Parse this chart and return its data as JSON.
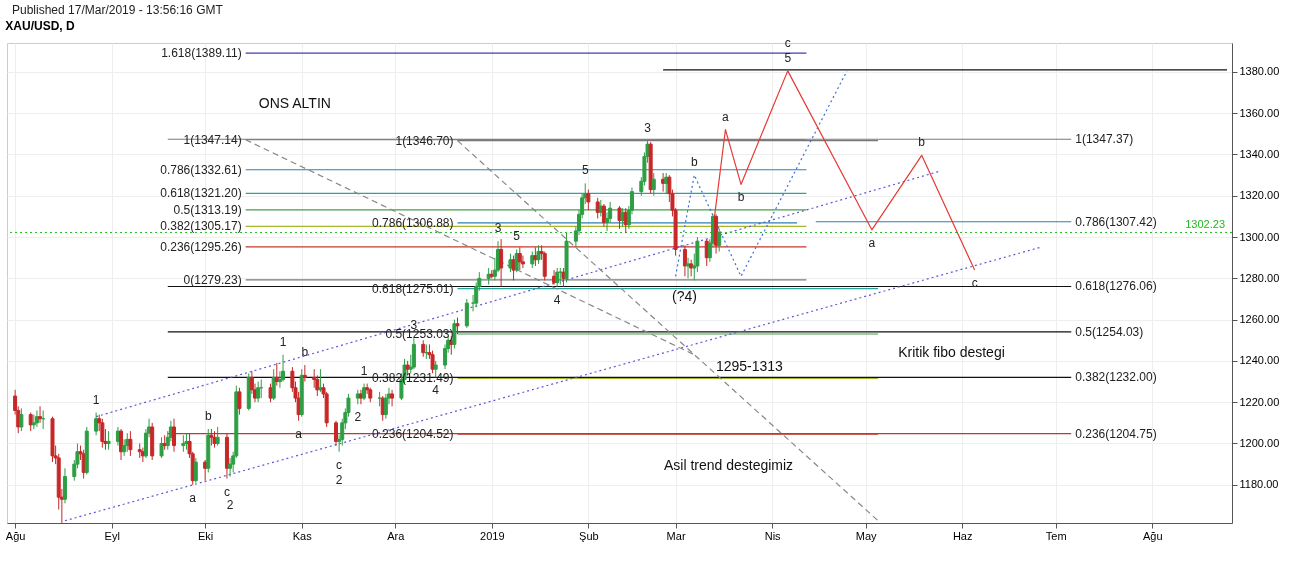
{
  "chart_data": {
    "type": "candlestick",
    "title": "XAU/USD, D",
    "x": [
      "2018-08-01",
      "2018-08-02",
      "2018-08-03",
      "2018-08-06",
      "2018-08-07",
      "2018-08-08",
      "2018-08-09",
      "2018-08-10",
      "2018-08-13",
      "2018-08-14",
      "2018-08-15",
      "2018-08-16",
      "2018-08-17",
      "2018-08-20",
      "2018-08-21",
      "2018-08-22",
      "2018-08-23",
      "2018-08-24",
      "2018-08-27",
      "2018-08-28",
      "2018-08-29",
      "2018-08-30",
      "2018-08-31",
      "2018-09-03",
      "2018-09-04",
      "2018-09-05",
      "2018-09-06",
      "2018-09-07",
      "2018-09-10",
      "2018-09-11",
      "2018-09-12",
      "2018-09-13",
      "2018-09-14",
      "2018-09-17",
      "2018-09-18",
      "2018-09-19",
      "2018-09-20",
      "2018-09-21",
      "2018-09-24",
      "2018-09-25",
      "2018-09-26",
      "2018-09-27",
      "2018-09-28",
      "2018-10-01",
      "2018-10-02",
      "2018-10-03",
      "2018-10-04",
      "2018-10-05",
      "2018-10-08",
      "2018-10-09",
      "2018-10-10",
      "2018-10-11",
      "2018-10-12",
      "2018-10-15",
      "2018-10-16",
      "2018-10-17",
      "2018-10-18",
      "2018-10-19",
      "2018-10-22",
      "2018-10-23",
      "2018-10-24",
      "2018-10-25",
      "2018-10-26",
      "2018-10-29",
      "2018-10-30",
      "2018-10-31",
      "2018-11-01",
      "2018-11-02",
      "2018-11-05",
      "2018-11-06",
      "2018-11-07",
      "2018-11-08",
      "2018-11-09",
      "2018-11-12",
      "2018-11-13",
      "2018-11-14",
      "2018-11-15",
      "2018-11-16",
      "2018-11-19",
      "2018-11-20",
      "2018-11-21",
      "2018-11-22",
      "2018-11-23",
      "2018-11-26",
      "2018-11-27",
      "2018-11-28",
      "2018-11-29",
      "2018-11-30",
      "2018-12-03",
      "2018-12-04",
      "2018-12-05",
      "2018-12-06",
      "2018-12-07",
      "2018-12-10",
      "2018-12-11",
      "2018-12-12",
      "2018-12-13",
      "2018-12-14",
      "2018-12-17",
      "2018-12-18",
      "2018-12-19",
      "2018-12-20",
      "2018-12-21",
      "2018-12-24",
      "2018-12-26",
      "2018-12-27",
      "2018-12-28",
      "2018-12-31",
      "2019-01-01",
      "2019-01-02",
      "2019-01-03",
      "2019-01-04",
      "2019-01-07",
      "2019-01-08",
      "2019-01-09",
      "2019-01-10",
      "2019-01-11",
      "2019-01-14",
      "2019-01-15",
      "2019-01-16",
      "2019-01-17",
      "2019-01-18",
      "2019-01-21",
      "2019-01-22",
      "2019-01-23",
      "2019-01-24",
      "2019-01-25",
      "2019-01-28",
      "2019-01-29",
      "2019-01-30",
      "2019-01-31",
      "2019-02-01",
      "2019-02-04",
      "2019-02-05",
      "2019-02-06",
      "2019-02-07",
      "2019-02-08",
      "2019-02-11",
      "2019-02-12",
      "2019-02-13",
      "2019-02-14",
      "2019-02-15",
      "2019-02-18",
      "2019-02-19",
      "2019-02-20",
      "2019-02-21",
      "2019-02-22",
      "2019-02-25",
      "2019-02-26",
      "2019-02-27",
      "2019-02-28",
      "2019-03-01",
      "2019-03-04",
      "2019-03-05",
      "2019-03-06",
      "2019-03-07",
      "2019-03-08",
      "2019-03-11",
      "2019-03-12",
      "2019-03-13",
      "2019-03-14",
      "2019-03-15"
    ],
    "ohlc": [
      [
        1223,
        1226,
        1214,
        1216
      ],
      [
        1216,
        1218,
        1205,
        1208
      ],
      [
        1208,
        1217,
        1206,
        1214
      ],
      [
        1214,
        1215,
        1206,
        1209
      ],
      [
        1209,
        1214,
        1207,
        1210
      ],
      [
        1210,
        1216,
        1208,
        1213
      ],
      [
        1213,
        1218,
        1210,
        1212
      ],
      [
        1212,
        1216,
        1207,
        1212
      ],
      [
        1212,
        1213,
        1191,
        1194
      ],
      [
        1194,
        1199,
        1190,
        1193
      ],
      [
        1193,
        1195,
        1168,
        1174
      ],
      [
        1174,
        1178,
        1161.5,
        1173
      ],
      [
        1173,
        1188,
        1171,
        1184
      ],
      [
        1184,
        1192,
        1182,
        1190
      ],
      [
        1190,
        1200,
        1188,
        1196
      ],
      [
        1196,
        1199,
        1192,
        1195
      ],
      [
        1195,
        1197,
        1183,
        1186
      ],
      [
        1186,
        1208,
        1185,
        1206
      ],
      [
        1206,
        1215,
        1204,
        1212
      ],
      [
        1212,
        1214,
        1206,
        1210
      ],
      [
        1210,
        1212,
        1198,
        1201
      ],
      [
        1201,
        1207,
        1197,
        1200
      ],
      [
        1200,
        1206,
        1197,
        1201
      ],
      [
        1201,
        1208,
        1199,
        1206
      ],
      [
        1206,
        1207,
        1192,
        1196
      ],
      [
        1196,
        1202,
        1194,
        1199
      ],
      [
        1199,
        1205,
        1196,
        1202
      ],
      [
        1202,
        1206,
        1194,
        1197
      ],
      [
        1197,
        1200,
        1193,
        1196
      ],
      [
        1196,
        1198,
        1191,
        1194
      ],
      [
        1194,
        1207,
        1193,
        1205
      ],
      [
        1205,
        1212,
        1203,
        1208
      ],
      [
        1208,
        1210,
        1192,
        1194
      ],
      [
        1194,
        1203,
        1193,
        1200
      ],
      [
        1200,
        1204,
        1197,
        1199
      ],
      [
        1199,
        1206,
        1197,
        1203
      ],
      [
        1203,
        1211,
        1201,
        1208
      ],
      [
        1208,
        1212,
        1196,
        1199
      ],
      [
        1199,
        1204,
        1196,
        1200
      ],
      [
        1200,
        1205,
        1197,
        1201
      ],
      [
        1201,
        1205,
        1193,
        1195
      ],
      [
        1195,
        1196,
        1180,
        1182
      ],
      [
        1182,
        1193,
        1181,
        1191
      ],
      [
        1191,
        1192,
        1182,
        1188
      ],
      [
        1188,
        1207,
        1186,
        1204
      ],
      [
        1204,
        1207,
        1199,
        1203
      ],
      [
        1203,
        1206,
        1198,
        1200
      ],
      [
        1200,
        1208,
        1199,
        1203
      ],
      [
        1203,
        1205,
        1183,
        1188
      ],
      [
        1188,
        1193,
        1184,
        1190
      ],
      [
        1190,
        1196,
        1186,
        1194
      ],
      [
        1194,
        1228,
        1193,
        1225
      ],
      [
        1225,
        1227,
        1214,
        1217
      ],
      [
        1217,
        1234,
        1216,
        1232
      ],
      [
        1232,
        1235,
        1224,
        1226
      ],
      [
        1226,
        1229,
        1220,
        1222
      ],
      [
        1222,
        1230,
        1220,
        1227
      ],
      [
        1227,
        1231,
        1222,
        1227
      ],
      [
        1227,
        1229,
        1220,
        1222
      ],
      [
        1222,
        1236,
        1221,
        1232
      ],
      [
        1232,
        1239,
        1228,
        1230
      ],
      [
        1230,
        1235,
        1227,
        1231
      ],
      [
        1231,
        1243,
        1230,
        1235
      ],
      [
        1235,
        1237,
        1225,
        1227
      ],
      [
        1227,
        1230,
        1220,
        1222
      ],
      [
        1222,
        1225,
        1211,
        1214
      ],
      [
        1214,
        1236,
        1213,
        1233
      ],
      [
        1233,
        1238,
        1230,
        1232
      ],
      [
        1232,
        1236,
        1227,
        1231
      ],
      [
        1231,
        1233,
        1223,
        1226
      ],
      [
        1226,
        1236,
        1225,
        1227
      ],
      [
        1227,
        1229,
        1222,
        1224
      ],
      [
        1224,
        1225,
        1208,
        1210
      ],
      [
        1210,
        1211,
        1199,
        1201
      ],
      [
        1201,
        1204,
        1196,
        1202
      ],
      [
        1202,
        1212,
        1199,
        1210
      ],
      [
        1210,
        1217,
        1207,
        1215
      ],
      [
        1215,
        1224,
        1213,
        1222
      ],
      [
        1222,
        1226,
        1219,
        1224
      ],
      [
        1224,
        1226,
        1219,
        1222
      ],
      [
        1222,
        1229,
        1221,
        1227
      ],
      [
        1227,
        1229,
        1224,
        1226
      ],
      [
        1226,
        1227,
        1220,
        1222
      ],
      [
        1222,
        1225,
        1218,
        1222
      ],
      [
        1222,
        1223,
        1211,
        1214
      ],
      [
        1214,
        1224,
        1212,
        1222
      ],
      [
        1222,
        1227,
        1219,
        1224
      ],
      [
        1224,
        1226,
        1218,
        1222
      ],
      [
        1222,
        1234,
        1221,
        1231
      ],
      [
        1231,
        1241,
        1229,
        1238
      ],
      [
        1238,
        1240,
        1233,
        1236
      ],
      [
        1236,
        1243,
        1234,
        1237
      ],
      [
        1237,
        1251,
        1236,
        1248
      ],
      [
        1248,
        1250,
        1242,
        1244
      ],
      [
        1244,
        1248,
        1241,
        1244
      ],
      [
        1244,
        1248,
        1241,
        1243
      ],
      [
        1243,
        1245,
        1234,
        1236
      ],
      [
        1236,
        1240,
        1232,
        1238
      ],
      [
        1238,
        1248,
        1236,
        1246
      ],
      [
        1246,
        1252,
        1244,
        1250
      ],
      [
        1250,
        1252,
        1243,
        1248
      ],
      [
        1248,
        1260,
        1246,
        1258
      ],
      [
        1258,
        1261,
        1253,
        1257
      ],
      [
        1257,
        1270,
        1256,
        1268
      ],
      [
        1268,
        1272,
        1264,
        1268
      ],
      [
        1268,
        1278,
        1266,
        1276
      ],
      [
        1276,
        1283,
        1274,
        1280
      ],
      [
        1280,
        1285,
        1277,
        1282
      ],
      [
        1282,
        1284,
        1280,
        1281
      ],
      [
        1281,
        1290,
        1279,
        1284
      ],
      [
        1284,
        1298,
        1283,
        1294
      ],
      [
        1294,
        1299,
        1276,
        1285
      ],
      [
        1285,
        1292,
        1283,
        1289
      ],
      [
        1289,
        1291,
        1279,
        1284
      ],
      [
        1284,
        1294,
        1283,
        1292
      ],
      [
        1292,
        1295,
        1284,
        1288
      ],
      [
        1288,
        1291,
        1285,
        1287
      ],
      [
        1287,
        1293,
        1285,
        1291
      ],
      [
        1291,
        1295,
        1286,
        1289
      ],
      [
        1289,
        1296,
        1287,
        1293
      ],
      [
        1293,
        1296,
        1289,
        1292
      ],
      [
        1292,
        1293,
        1279,
        1281
      ],
      [
        1281,
        1284,
        1277,
        1278
      ],
      [
        1278,
        1285,
        1276,
        1283
      ],
      [
        1283,
        1285,
        1277,
        1283
      ],
      [
        1283,
        1285,
        1276,
        1280
      ],
      [
        1280,
        1302,
        1278,
        1298
      ],
      [
        1298,
        1305,
        1295,
        1303
      ],
      [
        1303,
        1313,
        1301,
        1311
      ],
      [
        1311,
        1321,
        1309,
        1319
      ],
      [
        1319,
        1326,
        1316,
        1321
      ],
      [
        1321,
        1323,
        1313,
        1317
      ],
      [
        1317,
        1319,
        1309,
        1312
      ],
      [
        1312,
        1318,
        1310,
        1315
      ],
      [
        1315,
        1316,
        1305,
        1307
      ],
      [
        1307,
        1312,
        1303,
        1309
      ],
      [
        1309,
        1317,
        1307,
        1314
      ],
      [
        1314,
        1315,
        1304,
        1308
      ],
      [
        1308,
        1314,
        1305,
        1312
      ],
      [
        1312,
        1314,
        1302,
        1306
      ],
      [
        1306,
        1315,
        1304,
        1313
      ],
      [
        1313,
        1324,
        1311,
        1322
      ],
      [
        1322,
        1329,
        1320,
        1327
      ],
      [
        1327,
        1341,
        1325,
        1339
      ],
      [
        1339,
        1346.7,
        1336,
        1345
      ],
      [
        1345,
        1346,
        1321,
        1323
      ],
      [
        1323,
        1331,
        1320,
        1328
      ],
      [
        1328,
        1331,
        1322,
        1326
      ],
      [
        1326,
        1331,
        1321,
        1329
      ],
      [
        1329,
        1330,
        1317,
        1321
      ],
      [
        1321,
        1323,
        1310,
        1313
      ],
      [
        1313,
        1314,
        1291,
        1294
      ],
      [
        1294,
        1296,
        1281,
        1286
      ],
      [
        1286,
        1290,
        1280,
        1287
      ],
      [
        1287,
        1289,
        1281,
        1285
      ],
      [
        1285,
        1292,
        1279,
        1286
      ],
      [
        1286,
        1300,
        1283,
        1298
      ],
      [
        1298,
        1299,
        1286,
        1290
      ],
      [
        1290,
        1299,
        1288,
        1297
      ],
      [
        1297,
        1311,
        1295,
        1310
      ],
      [
        1310,
        1311,
        1292,
        1296
      ],
      [
        1296,
        1304,
        1293,
        1302.23
      ]
    ],
    "series": [
      {
        "type": "line",
        "color": "#3f3fb0",
        "line_style": "solid",
        "x": [
          "2018-10-14",
          "2019-04-12"
        ],
        "values": [
          1389.11,
          1389.11
        ]
      },
      {
        "type": "line",
        "color": "#787878",
        "line_style": "solid",
        "x": [
          "2018-10-14",
          "2019-04-12"
        ],
        "values": [
          1347.14,
          1347.14
        ]
      },
      {
        "type": "line",
        "color": "#2f7fb0",
        "line_style": "solid",
        "x": [
          "2018-10-14",
          "2019-04-12"
        ],
        "values": [
          1332.61,
          1332.61
        ]
      },
      {
        "type": "line",
        "color": "#26a69a",
        "line_style": "solid",
        "x": [
          "2018-10-14",
          "2019-04-12"
        ],
        "values": [
          1321.2,
          1321.2
        ]
      },
      {
        "type": "line",
        "color": "#43a047",
        "line_style": "solid",
        "x": [
          "2018-10-14",
          "2019-04-12"
        ],
        "values": [
          1313.19,
          1313.19
        ]
      },
      {
        "type": "line",
        "color": "#a5b630",
        "line_style": "solid",
        "x": [
          "2018-10-14",
          "2019-04-12"
        ],
        "values": [
          1305.17,
          1305.17
        ]
      },
      {
        "type": "line",
        "color": "#c0392b",
        "line_style": "solid",
        "x": [
          "2018-10-14",
          "2019-04-12"
        ],
        "values": [
          1295.26,
          1295.26
        ]
      },
      {
        "type": "line",
        "color": "#787878",
        "line_style": "solid",
        "x": [
          "2018-10-14",
          "2019-04-12"
        ],
        "values": [
          1279.23,
          1279.23
        ]
      },
      {
        "type": "line",
        "color": "#787878",
        "line_style": "solid",
        "x": [
          "2018-12-21",
          "2019-05-05"
        ],
        "values": [
          1346.7,
          1346.7
        ]
      },
      {
        "type": "line",
        "color": "#2f7fb0",
        "line_style": "solid",
        "x": [
          "2018-12-21",
          "2019-04-09"
        ],
        "values": [
          1306.88,
          1306.88
        ]
      },
      {
        "type": "line",
        "color": "#26a69a",
        "line_style": "solid",
        "x": [
          "2018-12-21",
          "2019-05-05"
        ],
        "values": [
          1275.01,
          1275.01
        ]
      },
      {
        "type": "line",
        "color": "#43a047",
        "line_style": "solid",
        "x": [
          "2018-12-21",
          "2019-05-05"
        ],
        "values": [
          1253.03,
          1253.03
        ]
      },
      {
        "type": "line",
        "color": "#a5b630",
        "line_style": "solid",
        "x": [
          "2018-12-21",
          "2019-05-05"
        ],
        "values": [
          1231.49,
          1231.49
        ]
      },
      {
        "type": "line",
        "color": "#c0392b",
        "line_style": "solid",
        "x": [
          "2018-12-21",
          "2019-05-05"
        ],
        "values": [
          1204.52,
          1204.52
        ]
      },
      {
        "type": "line",
        "color": "#787878",
        "line_style": "solid",
        "x": [
          "2018-09-19",
          "2019-07-06"
        ],
        "values": [
          1347.37,
          1347.37
        ]
      },
      {
        "type": "line",
        "color": "#2f7fb0",
        "line_style": "solid",
        "x": [
          "2019-04-15",
          "2019-07-06"
        ],
        "values": [
          1307.42,
          1307.42
        ]
      },
      {
        "type": "line",
        "color": "#111111",
        "line_style": "solid",
        "x": [
          "2018-09-19",
          "2019-07-06"
        ],
        "values": [
          1276.06,
          1276.06
        ]
      },
      {
        "type": "line",
        "color": "#111111",
        "line_style": "solid",
        "x": [
          "2018-09-19",
          "2019-07-06"
        ],
        "values": [
          1254.03,
          1254.03
        ]
      },
      {
        "type": "line",
        "color": "#111111",
        "line_style": "solid",
        "x": [
          "2018-09-19",
          "2019-07-06"
        ],
        "values": [
          1232.0,
          1232.0
        ]
      },
      {
        "type": "line",
        "color": "#c0392b",
        "line_style": "solid",
        "x": [
          "2018-09-19",
          "2019-07-06"
        ],
        "values": [
          1204.75,
          1204.75
        ]
      },
      {
        "type": "line",
        "color": "#111111",
        "line_style": "solid",
        "x": [
          "2019-02-25",
          "2019-08-25"
        ],
        "values": [
          1381,
          1381
        ]
      },
      {
        "type": "line",
        "color": "#5b5bd6",
        "line_style": "dotted",
        "x": [
          "2018-08-27",
          "2019-05-25"
        ],
        "values": [
          1213,
          1332
        ]
      },
      {
        "type": "line",
        "color": "#5b5bd6",
        "line_style": "dotted",
        "x": [
          "2018-08-17",
          "2019-06-26"
        ],
        "values": [
          1162.6,
          1295
        ]
      },
      {
        "type": "line",
        "color": "#888888",
        "line_style": "dashed",
        "x": [
          "2018-10-14",
          "2019-03-07"
        ],
        "values": [
          1347.1,
          1243
        ]
      },
      {
        "type": "line",
        "color": "#888888",
        "line_style": "dashed",
        "x": [
          "2018-12-21",
          "2019-05-05"
        ],
        "values": [
          1346.7,
          1162.6
        ]
      },
      {
        "type": "line",
        "color": "#3b6fd6",
        "line_style": "dotted",
        "x": [
          "2019-03-01",
          "2019-03-07",
          "2019-03-22",
          "2019-04-25"
        ],
        "values": [
          1281,
          1330,
          1281,
          1380.5
        ]
      },
      {
        "type": "line",
        "color": "#e53935",
        "line_style": "solid",
        "x": [
          "2019-03-12",
          "2019-03-17",
          "2019-03-22",
          "2019-04-06",
          "2019-05-03",
          "2019-05-19",
          "2019-06-05"
        ],
        "values": [
          1292,
          1352,
          1325.5,
          1380.5,
          1303.5,
          1339.6,
          1284
        ]
      }
    ],
    "ref_lines": [
      {
        "axis": "y",
        "value": 1302.23,
        "label": "1302.23",
        "color": "#22b822",
        "line_style": "dotted"
      }
    ],
    "xlim": [
      "2018-07-31",
      "2019-08-25"
    ],
    "xticks": [
      {
        "value": "2018-08-01",
        "label": "Ağu"
      },
      {
        "value": "2018-09-01",
        "label": "Eyl"
      },
      {
        "value": "2018-10-01",
        "label": "Eki"
      },
      {
        "value": "2018-11-01",
        "label": "Kas"
      },
      {
        "value": "2018-12-01",
        "label": "Ara"
      },
      {
        "value": "2019-01-01",
        "label": "2019"
      },
      {
        "value": "2019-02-01",
        "label": "Şub"
      },
      {
        "value": "2019-03-01",
        "label": "Mar"
      },
      {
        "value": "2019-04-01",
        "label": "Nis"
      },
      {
        "value": "2019-05-01",
        "label": "May"
      },
      {
        "value": "2019-06-01",
        "label": "Haz"
      },
      {
        "value": "2019-07-01",
        "label": "Tem"
      },
      {
        "value": "2019-08-01",
        "label": "Ağu"
      }
    ],
    "ylim": [
      1161.49,
      1394
    ],
    "yticks": [
      {
        "value": 1180,
        "label": "1180.00"
      },
      {
        "value": 1200,
        "label": "1200.00"
      },
      {
        "value": 1220,
        "label": "1220.00"
      },
      {
        "value": 1240,
        "label": "1240.00"
      },
      {
        "value": 1260,
        "label": "1260.00"
      },
      {
        "value": 1280,
        "label": "1280.00"
      },
      {
        "value": 1300,
        "label": "1300.00"
      },
      {
        "value": 1320,
        "label": "1320.00"
      },
      {
        "value": 1340,
        "label": "1340.00"
      },
      {
        "value": 1360,
        "label": "1360.00"
      },
      {
        "value": 1380,
        "label": "1380.00"
      }
    ],
    "grid": true,
    "annotations": [
      "Published 17/Mar/2019 - 13:56:16 GMT",
      "ONS ALTIN",
      "(?4)",
      "1295-1313",
      "Kritik fibo destegi",
      "Asil trend destegimiz",
      {
        "text": "1.618(1389.11)",
        "x": "2018-10-14",
        "y": 1389.11
      },
      {
        "text": "1(1347.14)",
        "x": "2018-10-14",
        "y": 1347.14
      },
      {
        "text": "0.786(1332.61)",
        "x": "2018-10-14",
        "y": 1332.61
      },
      {
        "text": "0.618(1321.20)",
        "x": "2018-10-14",
        "y": 1321.2
      },
      {
        "text": "0.5(1313.19)",
        "x": "2018-10-14",
        "y": 1313.19
      },
      {
        "text": "0.382(1305.17)",
        "x": "2018-10-14",
        "y": 1305.17
      },
      {
        "text": "0.236(1295.26)",
        "x": "2018-10-14",
        "y": 1295.26
      },
      {
        "text": "0(1279.23)",
        "x": "2018-10-14",
        "y": 1279.23
      },
      {
        "text": "1(1346.70)",
        "x": "2018-12-21",
        "y": 1346.7
      },
      {
        "text": "0.786(1306.88)",
        "x": "2018-12-21",
        "y": 1306.88
      },
      {
        "text": "0.618(1275.01)",
        "x": "2018-12-21",
        "y": 1275.01
      },
      {
        "text": "0.5(1253.03)",
        "x": "2018-12-21",
        "y": 1253.03
      },
      {
        "text": "0.382(1231.49)",
        "x": "2018-12-21",
        "y": 1231.49
      },
      {
        "text": "0.236(1204.52)",
        "x": "2018-12-21",
        "y": 1204.52
      },
      {
        "text": "1(1347.37)",
        "x": "2019-07-06",
        "y": 1347.37
      },
      {
        "text": "0.786(1307.42)",
        "x": "2019-07-06",
        "y": 1307.42
      },
      {
        "text": "0.618(1276.06)",
        "x": "2019-07-06",
        "y": 1276.06
      },
      {
        "text": "0.5(1254.03)",
        "x": "2019-07-06",
        "y": 1254.03
      },
      {
        "text": "0.382(1232.00)",
        "x": "2019-07-06",
        "y": 1232.0
      },
      {
        "text": "0.236(1204.75)",
        "x": "2019-07-06",
        "y": 1204.75
      },
      {
        "text": "1",
        "x": "2018-08-27",
        "y": 1215
      },
      {
        "text": "a",
        "x": "2018-09-27",
        "y": 1180
      },
      {
        "text": "b",
        "x": "2018-10-02",
        "y": 1207
      },
      {
        "text": "c",
        "x": "2018-10-08",
        "y": 1183
      },
      {
        "text": "2",
        "x": "2018-10-09",
        "y": 1184
      },
      {
        "text": "1",
        "x": "2018-10-26",
        "y": 1243
      },
      {
        "text": "a",
        "x": "2018-10-31",
        "y": 1211
      },
      {
        "text": "b",
        "x": "2018-11-02",
        "y": 1238
      },
      {
        "text": "c",
        "x": "2018-11-13",
        "y": 1196
      },
      {
        "text": "2",
        "x": "2018-11-13",
        "y": 1196
      },
      {
        "text": "1",
        "x": "2018-11-21",
        "y": 1229
      },
      {
        "text": "2",
        "x": "2018-11-19",
        "y": 1219
      },
      {
        "text": "3",
        "x": "2018-12-07",
        "y": 1251
      },
      {
        "text": "4",
        "x": "2018-12-14",
        "y": 1232
      },
      {
        "text": "3",
        "x": "2019-01-03",
        "y": 1298
      },
      {
        "text": "5",
        "x": "2019-01-09",
        "y": 1294
      },
      {
        "text": "4",
        "x": "2019-01-22",
        "y": 1276
      },
      {
        "text": "5",
        "x": "2019-01-31",
        "y": 1326
      },
      {
        "text": "3",
        "x": "2019-02-20",
        "y": 1346.7
      },
      {
        "text": "b",
        "x": "2019-03-07",
        "y": 1330
      },
      {
        "text": "a",
        "x": "2019-03-17",
        "y": 1352
      },
      {
        "text": "b",
        "x": "2019-03-22",
        "y": 1325.5
      },
      {
        "text": "5",
        "x": "2019-04-06",
        "y": 1380.5
      },
      {
        "text": "c",
        "x": "2019-04-06",
        "y": 1380.5
      },
      {
        "text": "a",
        "x": "2019-05-03",
        "y": 1303.5
      },
      {
        "text": "b",
        "x": "2019-05-19",
        "y": 1339.6
      },
      {
        "text": "c",
        "x": "2019-06-05",
        "y": 1284
      }
    ]
  }
}
